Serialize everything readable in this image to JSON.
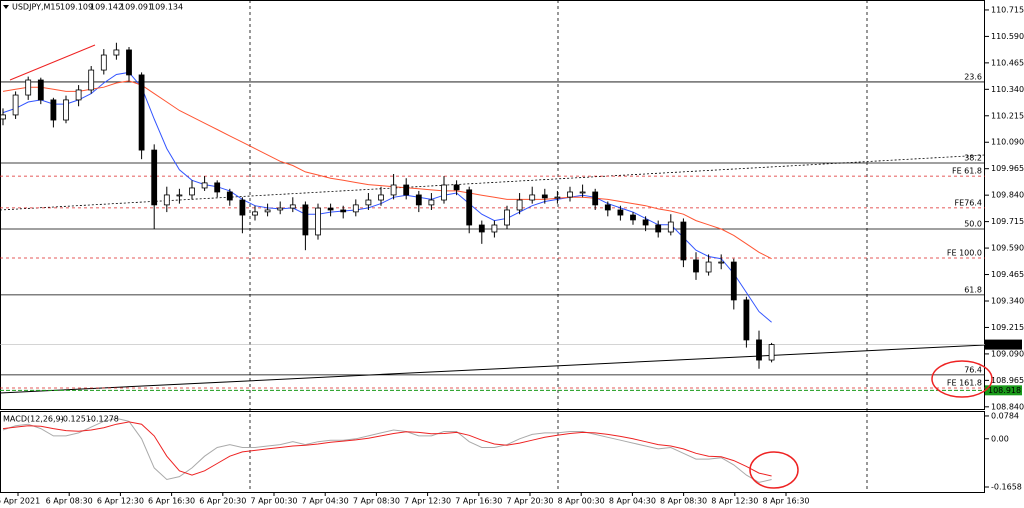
{
  "chart_data": {
    "type": "candlestick",
    "symbol": "USDJPY,M15",
    "quote": [
      109.109,
      109.142,
      109.091,
      109.134
    ],
    "candles": [
      [
        110.2,
        110.25,
        110.17,
        110.219
      ],
      [
        110.219,
        110.33,
        110.2,
        110.313
      ],
      [
        110.313,
        110.4,
        110.29,
        110.384
      ],
      [
        110.384,
        110.395,
        110.27,
        110.29
      ],
      [
        110.29,
        110.3,
        110.16,
        110.195
      ],
      [
        110.195,
        110.31,
        110.18,
        110.29
      ],
      [
        110.29,
        110.36,
        110.26,
        110.337
      ],
      [
        110.337,
        110.45,
        110.32,
        110.431
      ],
      [
        110.431,
        110.53,
        110.41,
        110.502
      ],
      [
        110.502,
        110.56,
        110.48,
        110.526
      ],
      [
        110.526,
        110.54,
        110.38,
        110.408
      ],
      [
        110.408,
        110.42,
        110.01,
        110.053
      ],
      [
        110.053,
        110.08,
        109.68,
        109.794
      ],
      [
        109.794,
        109.88,
        109.76,
        109.841
      ],
      [
        109.841,
        109.87,
        109.8,
        109.841
      ],
      [
        109.841,
        109.91,
        109.82,
        109.874
      ],
      [
        109.874,
        109.93,
        109.86,
        109.898
      ],
      [
        109.898,
        109.91,
        109.83,
        109.855
      ],
      [
        109.855,
        109.87,
        109.79,
        109.817
      ],
      [
        109.817,
        109.83,
        109.66,
        109.746
      ],
      [
        109.746,
        109.79,
        109.72,
        109.761
      ],
      [
        109.761,
        109.8,
        109.74,
        109.77
      ],
      [
        109.77,
        109.81,
        109.75,
        109.779
      ],
      [
        109.779,
        109.83,
        109.76,
        109.794
      ],
      [
        109.794,
        109.81,
        109.58,
        109.652
      ],
      [
        109.652,
        109.8,
        109.63,
        109.779
      ],
      [
        109.779,
        109.8,
        109.74,
        109.77
      ],
      [
        109.77,
        109.79,
        109.73,
        109.761
      ],
      [
        109.761,
        109.82,
        109.74,
        109.794
      ],
      [
        109.794,
        109.85,
        109.77,
        109.817
      ],
      [
        109.817,
        109.88,
        109.79,
        109.841
      ],
      [
        109.841,
        109.94,
        109.82,
        109.888
      ],
      [
        109.888,
        109.92,
        109.82,
        109.841
      ],
      [
        109.841,
        109.86,
        109.76,
        109.794
      ],
      [
        109.794,
        109.85,
        109.77,
        109.817
      ],
      [
        109.817,
        109.93,
        109.8,
        109.888
      ],
      [
        109.888,
        109.91,
        109.84,
        109.865
      ],
      [
        109.865,
        109.88,
        109.66,
        109.699
      ],
      [
        109.699,
        109.72,
        109.61,
        109.666
      ],
      [
        109.666,
        109.72,
        109.64,
        109.699
      ],
      [
        109.699,
        109.79,
        109.68,
        109.77
      ],
      [
        109.77,
        109.85,
        109.75,
        109.817
      ],
      [
        109.817,
        109.88,
        109.8,
        109.841
      ],
      [
        109.841,
        109.87,
        109.8,
        109.827
      ],
      [
        109.827,
        109.86,
        109.8,
        109.831
      ],
      [
        109.831,
        109.88,
        109.81,
        109.855
      ],
      [
        109.855,
        109.89,
        109.83,
        109.855
      ],
      [
        109.855,
        109.87,
        109.77,
        109.794
      ],
      [
        109.794,
        109.81,
        109.74,
        109.77
      ],
      [
        109.77,
        109.79,
        109.72,
        109.746
      ],
      [
        109.746,
        109.76,
        109.7,
        109.723
      ],
      [
        109.723,
        109.74,
        109.67,
        109.699
      ],
      [
        109.699,
        109.72,
        109.64,
        109.666
      ],
      [
        109.666,
        109.75,
        109.65,
        109.713
      ],
      [
        109.713,
        109.73,
        109.5,
        109.534
      ],
      [
        109.534,
        109.57,
        109.44,
        109.477
      ],
      [
        109.477,
        109.56,
        109.46,
        109.524
      ],
      [
        109.524,
        109.56,
        109.49,
        109.524
      ],
      [
        109.524,
        109.54,
        109.3,
        109.345
      ],
      [
        109.345,
        109.36,
        109.12,
        109.156
      ],
      [
        109.156,
        109.2,
        109.02,
        109.061
      ],
      [
        109.061,
        109.142,
        109.05,
        109.134
      ]
    ],
    "series": [
      {
        "color": "#3355ff",
        "values": [
          110.23,
          110.25,
          110.28,
          110.29,
          110.27,
          110.27,
          110.29,
          110.32,
          110.37,
          110.41,
          110.42,
          110.35,
          110.2,
          110.06,
          109.96,
          109.91,
          109.89,
          109.88,
          109.86,
          109.82,
          109.79,
          109.78,
          109.775,
          109.78,
          109.75,
          109.75,
          109.76,
          109.765,
          109.77,
          109.78,
          109.8,
          109.83,
          109.84,
          109.83,
          109.82,
          109.84,
          109.85,
          109.8,
          109.75,
          109.72,
          109.73,
          109.76,
          109.79,
          109.81,
          109.82,
          109.83,
          109.84,
          109.83,
          109.8,
          109.78,
          109.76,
          109.73,
          109.7,
          109.7,
          109.64,
          109.58,
          109.55,
          109.54,
          109.47,
          109.38,
          109.29,
          109.24
        ]
      },
      {
        "color": "#ff5533",
        "values": [
          110.33,
          110.34,
          110.35,
          110.35,
          110.34,
          110.33,
          110.33,
          110.34,
          110.35,
          110.37,
          110.38,
          110.36,
          110.32,
          110.28,
          110.24,
          110.21,
          110.18,
          110.15,
          110.12,
          110.09,
          110.06,
          110.03,
          110.0,
          109.98,
          109.95,
          109.935,
          109.92,
          109.91,
          109.9,
          109.89,
          109.885,
          109.88,
          109.875,
          109.87,
          109.865,
          109.86,
          109.86,
          109.85,
          109.84,
          109.83,
          109.82,
          109.82,
          109.82,
          109.82,
          109.825,
          109.83,
          109.83,
          109.825,
          109.82,
          109.81,
          109.8,
          109.79,
          109.775,
          109.765,
          109.75,
          109.72,
          109.7,
          109.68,
          109.65,
          109.61,
          109.57,
          109.54
        ]
      }
    ],
    "ylim": [
      108.825,
      110.762
    ],
    "yticks": [
      110.715,
      {
        "value": 110.59,
        "label": "110.590"
      },
      110.465,
      {
        "value": 110.34,
        "label": "110.340"
      },
      110.215,
      {
        "value": 110.09,
        "label": "110.090"
      },
      109.965,
      {
        "value": 109.84,
        "label": "109.840"
      },
      109.715,
      {
        "value": 109.59,
        "label": "109.590"
      },
      109.465,
      {
        "value": 109.34,
        "label": "109.340"
      },
      109.215,
      {
        "value": 109.09,
        "label": "109.090"
      },
      108.965,
      {
        "value": 108.84,
        "label": "108.840"
      }
    ],
    "levels": [
      {
        "label": "23.6",
        "value": 110.375,
        "color": "#000000",
        "dashed": false
      },
      {
        "label": "38.2",
        "value": 109.992,
        "color": "#000000",
        "dashed": false
      },
      {
        "label": "FE 61.8",
        "value": 109.93,
        "color": "#dd2222",
        "dashed": true
      },
      {
        "label": "FE76.4",
        "value": 109.78,
        "color": "#dd2222",
        "dashed": true
      },
      {
        "label": "50.0",
        "value": 109.68,
        "color": "#000000",
        "dashed": false
      },
      {
        "label": "FE 100.0",
        "value": 109.543,
        "color": "#dd2222",
        "dashed": true
      },
      {
        "label": "61.8",
        "value": 109.369,
        "color": "#000000",
        "dashed": false
      },
      {
        "label": "76.4",
        "value": 108.991,
        "color": "#000000",
        "dashed": false
      },
      {
        "label": "FE 161.8",
        "value": 108.929,
        "color": "#dd2222",
        "dashed": true
      }
    ],
    "current_price": 109.134,
    "alert_price": 108.918,
    "time_labels": [
      "6 Apr 2021",
      "6 Apr 08:30",
      "6 Apr 12:30",
      "6 Apr 16:30",
      "6 Apr 20:30",
      "7 Apr 00:30",
      "7 Apr 04:30",
      "7 Apr 08:30",
      "7 Apr 12:30",
      "7 Apr 16:30",
      "7 Apr 20:30",
      "8 Apr 00:30",
      "8 Apr 04:30",
      "8 Apr 08:30",
      "8 Apr 12:30",
      "8 Apr 16:30"
    ],
    "macd": {
      "title": "MACD(12,26,9)",
      "readings": [
        -0.1251,
        -0.1278
      ],
      "ylim": [
        -0.1933,
        0.092
      ],
      "yticks": [
        0.0784,
        {
          "value": 0,
          "label": "0.00"
        },
        -0.1658
      ],
      "series": [
        {
          "color": "#aaaaaa",
          "values": [
            0.03,
            0.045,
            0.05,
            0.035,
            0.01,
            0.01,
            0.02,
            0.04,
            0.06,
            0.07,
            0.06,
            0.0,
            -0.1,
            -0.14,
            -0.13,
            -0.1,
            -0.06,
            -0.03,
            -0.02,
            -0.03,
            -0.03,
            -0.025,
            -0.02,
            -0.01,
            -0.02,
            -0.01,
            -0.005,
            -0.005,
            0.0,
            0.01,
            0.02,
            0.03,
            0.025,
            0.01,
            0.01,
            0.025,
            0.025,
            -0.01,
            -0.03,
            -0.03,
            -0.02,
            0.0,
            0.015,
            0.02,
            0.02,
            0.025,
            0.025,
            0.015,
            0.005,
            -0.005,
            -0.015,
            -0.025,
            -0.035,
            -0.03,
            -0.05,
            -0.07,
            -0.07,
            -0.065,
            -0.09,
            -0.125,
            -0.15,
            -0.14
          ]
        },
        {
          "color": "#ee2222",
          "values": [
            0.035,
            0.04,
            0.045,
            0.043,
            0.035,
            0.028,
            0.026,
            0.03,
            0.038,
            0.05,
            0.058,
            0.05,
            0.01,
            -0.06,
            -0.11,
            -0.125,
            -0.11,
            -0.085,
            -0.06,
            -0.045,
            -0.04,
            -0.035,
            -0.03,
            -0.025,
            -0.022,
            -0.018,
            -0.012,
            -0.008,
            -0.004,
            0.002,
            0.01,
            0.018,
            0.024,
            0.022,
            0.017,
            0.018,
            0.022,
            0.012,
            -0.005,
            -0.018,
            -0.022,
            -0.015,
            -0.005,
            0.005,
            0.012,
            0.018,
            0.022,
            0.02,
            0.015,
            0.008,
            0.0,
            -0.01,
            -0.02,
            -0.025,
            -0.035,
            -0.05,
            -0.06,
            -0.062,
            -0.075,
            -0.095,
            -0.118,
            -0.128
          ]
        }
      ]
    }
  }
}
